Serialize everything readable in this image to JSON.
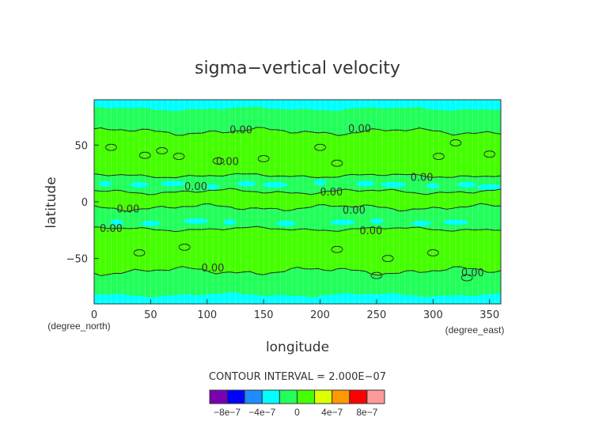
{
  "chart_data": {
    "type": "heatmap",
    "subtype": "filled-contour",
    "title": "sigma−vertical velocity",
    "xlabel": "longitude",
    "ylabel": "latitude",
    "x_units": "(degree_east)",
    "y_units": "(degree_north)",
    "xlim": [
      0,
      360
    ],
    "ylim": [
      -90,
      90
    ],
    "x_ticks": [
      0,
      50,
      100,
      150,
      200,
      250,
      300,
      350
    ],
    "y_ticks": [
      -50,
      0,
      50
    ],
    "y_tick_labels": [
      "−50",
      "0",
      "50"
    ],
    "contour_interval_text": "CONTOUR INTERVAL = 2.000E−07",
    "contour_labels": [
      "0.00",
      "0.00",
      "0.00",
      "0.00",
      "0.00",
      "0.00",
      "0.00",
      "0.00",
      "0.00",
      "0.00",
      "0.00",
      "0.00"
    ],
    "zonal_bands": [
      {
        "lat_range": [
          80,
          90
        ],
        "level": "-4e-7 to -2e-7"
      },
      {
        "lat_range": [
          60,
          80
        ],
        "level": "-2e-7 to 0"
      },
      {
        "lat_range": [
          23,
          60
        ],
        "level": "0 to 2e-7"
      },
      {
        "lat_range": [
          10,
          23
        ],
        "level": "-2e-7 to 0 with -4e-7 patches near 15"
      },
      {
        "lat_range": [
          -5,
          10
        ],
        "level": "0 to 2e-7"
      },
      {
        "lat_range": [
          -25,
          -5
        ],
        "level": "-2e-7 to 0 with -4e-7 patches near -18"
      },
      {
        "lat_range": [
          -60,
          -25
        ],
        "level": "0 to 2e-7"
      },
      {
        "lat_range": [
          -80,
          -60
        ],
        "level": "-2e-7 to 0"
      },
      {
        "lat_range": [
          -90,
          -80
        ],
        "level": "-4e-7 to -2e-7"
      }
    ],
    "colorbar": {
      "colors": [
        "#7a00b0",
        "#0000ff",
        "#1e8cff",
        "#00ffff",
        "#22ff5a",
        "#44ff00",
        "#ddff00",
        "#ff9900",
        "#ff0000",
        "#ff9a9a"
      ],
      "tick_labels": [
        "−8e−7",
        "−4e−7",
        "0",
        "4e−7",
        "8e−7"
      ]
    }
  }
}
